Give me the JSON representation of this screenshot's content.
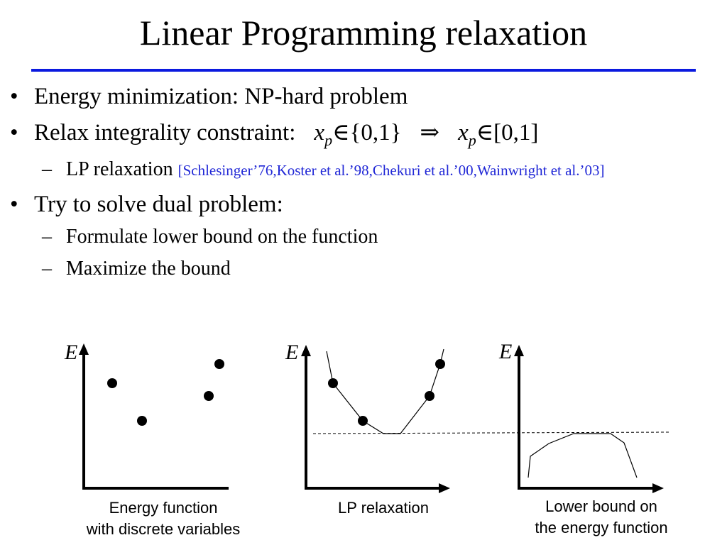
{
  "title": "Linear Programming relaxation",
  "bullets": {
    "b1": "Energy minimization: NP-hard problem",
    "b2_prefix": "Relax integrality constraint:",
    "b2_var": "x",
    "b2_sub": "p",
    "b2_set1": "∈{0,1}",
    "b2_implies": "⇒",
    "b2_set2": "∈[0,1]",
    "b3_text": "LP relaxation ",
    "b3_cite": "[Schlesinger’76,Koster et al.’98,Chekuri et al.’00,Wainwright et al.’03]",
    "b4": "Try to solve dual problem:",
    "b5": "Formulate lower bound on the function",
    "b6": "Maximize the bound"
  },
  "bullet_glyph": "•",
  "dash_glyph": "–",
  "figures": {
    "axis_label": "E",
    "caption1_line1": "Energy function",
    "caption1_line2": "with discrete variables",
    "caption2": "LP relaxation",
    "caption3_line1": "Lower bound on",
    "caption3_line2": "the energy function"
  },
  "colors": {
    "title_rule": "#0b1adf",
    "citation": "#2027d6"
  }
}
